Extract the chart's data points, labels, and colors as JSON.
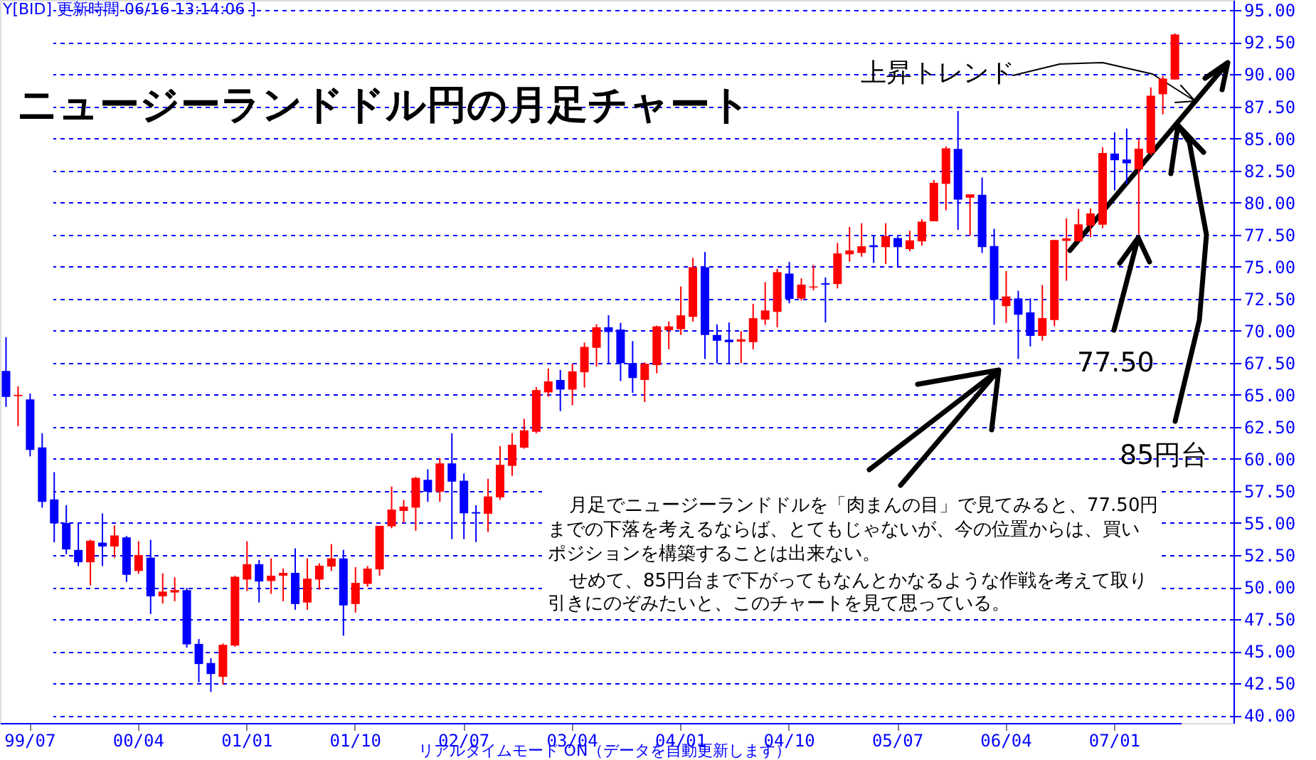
{
  "chart_data": {
    "type": "candlestick",
    "title": "ニュージーランドドル円の月足チャート",
    "categories": [
      null,
      null,
      "99/07",
      null,
      null,
      null,
      null,
      null,
      null,
      null,
      null,
      "00/04",
      null,
      null,
      null,
      null,
      null,
      null,
      null,
      null,
      "01/01",
      null,
      null,
      null,
      null,
      null,
      null,
      null,
      null,
      "01/10",
      null,
      null,
      null,
      null,
      null,
      null,
      null,
      null,
      "02/07",
      null,
      null,
      null,
      null,
      null,
      null,
      null,
      null,
      "03/04",
      null,
      null,
      null,
      null,
      null,
      null,
      null,
      null,
      "04/01",
      null,
      null,
      null,
      null,
      null,
      null,
      null,
      null,
      "04/10",
      null,
      null,
      null,
      null,
      null,
      null,
      null,
      null,
      "05/07",
      null,
      null,
      null,
      null,
      null,
      null,
      null,
      null,
      "06/04",
      null,
      null,
      null,
      null,
      null,
      null,
      null,
      null,
      "07/01",
      null,
      null,
      null,
      null,
      null
    ],
    "ohlc": [
      [
        66.86,
        69.5,
        64.06,
        64.84
      ],
      [
        64.9,
        65.67,
        62.56,
        65.0
      ],
      [
        64.65,
        65.1,
        60.2,
        60.7
      ],
      [
        60.9,
        62.0,
        56.2,
        56.65
      ],
      [
        56.84,
        58.97,
        53.5,
        54.97
      ],
      [
        55.0,
        56.39,
        52.57,
        52.94
      ],
      [
        52.9,
        55.0,
        51.64,
        51.94
      ],
      [
        51.94,
        53.7,
        50.14,
        53.62
      ],
      [
        53.47,
        55.75,
        51.64,
        53.17
      ],
      [
        53.17,
        54.82,
        52.3,
        54.03
      ],
      [
        53.88,
        53.99,
        50.4,
        50.96
      ],
      [
        51.26,
        53.58,
        51.04,
        52.5
      ],
      [
        52.3,
        53.69,
        47.9,
        49.28
      ],
      [
        49.28,
        51.07,
        48.72,
        49.65
      ],
      [
        49.58,
        50.77,
        48.9,
        49.77
      ],
      [
        49.77,
        49.95,
        45.28,
        45.54
      ],
      [
        45.57,
        45.95,
        42.58,
        44.0
      ],
      [
        44.08,
        44.45,
        41.83,
        43.22
      ],
      [
        43.0,
        45.6,
        42.4,
        45.5
      ],
      [
        45.43,
        50.89,
        45.35,
        50.81
      ],
      [
        50.59,
        53.58,
        49.69,
        51.79
      ],
      [
        51.79,
        52.12,
        48.8,
        50.44
      ],
      [
        50.48,
        52.24,
        49.47,
        50.89
      ],
      [
        50.89,
        51.45,
        48.9,
        51.11
      ],
      [
        51.11,
        53.02,
        48.23,
        48.68
      ],
      [
        48.8,
        52.24,
        48.23,
        50.66
      ],
      [
        50.59,
        51.86,
        49.8,
        51.67
      ],
      [
        51.6,
        53.36,
        51.26,
        52.24
      ],
      [
        52.24,
        52.91,
        46.21,
        48.57
      ],
      [
        48.68,
        51.56,
        48.01,
        50.33
      ],
      [
        50.25,
        51.64,
        50.03,
        51.45
      ],
      [
        51.38,
        54.78,
        50.89,
        54.78
      ],
      [
        54.74,
        57.85,
        54.59,
        56.05
      ],
      [
        55.94,
        56.8,
        55.0,
        56.28
      ],
      [
        56.2,
        58.6,
        54.4,
        58.52
      ],
      [
        58.37,
        59.19,
        56.65,
        57.44
      ],
      [
        57.44,
        60.06,
        56.66,
        59.65
      ],
      [
        59.65,
        62.0,
        53.74,
        58.23
      ],
      [
        58.3,
        58.86,
        53.74,
        55.76
      ],
      [
        55.85,
        56.39,
        53.51,
        55.74
      ],
      [
        55.72,
        58.45,
        54.3,
        57.07
      ],
      [
        57.0,
        61.0,
        56.8,
        59.54
      ],
      [
        59.46,
        62.0,
        58.68,
        61.1
      ],
      [
        60.88,
        63.13,
        60.8,
        62.23
      ],
      [
        62.12,
        65.6,
        62.0,
        65.37
      ],
      [
        65.19,
        67.06,
        64.85,
        66.05
      ],
      [
        66.16,
        66.94,
        63.73,
        65.41
      ],
      [
        65.41,
        67.43,
        64.18,
        66.83
      ],
      [
        66.76,
        69.08,
        65.56,
        68.74
      ],
      [
        68.67,
        70.5,
        67.21,
        70.27
      ],
      [
        70.27,
        71.21,
        67.47,
        69.9
      ],
      [
        70.09,
        70.61,
        66.08,
        67.47
      ],
      [
        67.47,
        69.19,
        65.15,
        66.31
      ],
      [
        66.16,
        67.54,
        64.44,
        67.43
      ],
      [
        67.32,
        70.4,
        66.68,
        70.34
      ],
      [
        70.04,
        70.72,
        68.55,
        70.34
      ],
      [
        70.12,
        73.45,
        69.67,
        71.2
      ],
      [
        71.09,
        75.69,
        70.72,
        74.95
      ],
      [
        74.95,
        76.14,
        67.8,
        69.67
      ],
      [
        69.67,
        70.49,
        67.46,
        69.22
      ],
      [
        69.3,
        70.64,
        67.46,
        69.11
      ],
      [
        69.15,
        69.97,
        67.46,
        69.33
      ],
      [
        69.11,
        72.1,
        68.55,
        70.98
      ],
      [
        70.87,
        73.79,
        70.46,
        71.58
      ],
      [
        71.47,
        74.83,
        70.27,
        74.57
      ],
      [
        74.46,
        75.36,
        72.14,
        72.48
      ],
      [
        72.51,
        74.09,
        72.36,
        73.6
      ],
      [
        73.37,
        75.13,
        73.15,
        73.45
      ],
      [
        73.71,
        74.16,
        70.64,
        73.6
      ],
      [
        73.64,
        76.85,
        73.3,
        76.03
      ],
      [
        75.96,
        78.09,
        75.4,
        76.26
      ],
      [
        76.07,
        78.39,
        75.77,
        76.59
      ],
      [
        76.67,
        77.46,
        75.29,
        76.52
      ],
      [
        76.52,
        78.39,
        75.21,
        77.38
      ],
      [
        77.23,
        77.35,
        75.03,
        76.52
      ],
      [
        76.37,
        77.8,
        76.2,
        77.05
      ],
      [
        76.97,
        78.69,
        76.64,
        78.51
      ],
      [
        78.54,
        81.76,
        78.54,
        81.54
      ],
      [
        81.46,
        84.38,
        79.4,
        84.23
      ],
      [
        84.19,
        87.15,
        77.87,
        80.23
      ],
      [
        80.38,
        80.64,
        77.42,
        80.64
      ],
      [
        80.6,
        81.95,
        76.07,
        76.52
      ],
      [
        76.6,
        77.95,
        70.46,
        72.41
      ],
      [
        71.92,
        74.65,
        70.61,
        72.67
      ],
      [
        72.52,
        73.12,
        67.8,
        71.25
      ],
      [
        71.43,
        72.52,
        68.78,
        69.6
      ],
      [
        69.6,
        73.57,
        69.22,
        70.99
      ],
      [
        70.84,
        77.08,
        70.35,
        77.08
      ],
      [
        77.01,
        78.77,
        73.9,
        77.2
      ],
      [
        76.97,
        79.5,
        76.97,
        78.3
      ],
      [
        78.2,
        79.54,
        77.3,
        79.15
      ],
      [
        78.27,
        84.32,
        78.0,
        83.86
      ],
      [
        83.82,
        85.47,
        80.95,
        83.3
      ],
      [
        83.36,
        85.77,
        81.45,
        83.06
      ],
      [
        82.6,
        84.97,
        77.5,
        84.2
      ],
      [
        83.86,
        88.98,
        83.7,
        88.33
      ],
      [
        88.45,
        89.86,
        86.88,
        89.67
      ],
      [
        89.6,
        93.19,
        89.6,
        93.11
      ]
    ],
    "colors": [
      "#0000ff",
      "#ff0000",
      "#0000ff",
      "#0000ff",
      "#0000ff",
      "#0000ff",
      "#0000ff",
      "#ff0000",
      "#0000ff",
      "#ff0000",
      "#0000ff",
      "#ff0000",
      "#0000ff",
      "#ff0000",
      "#ff0000",
      "#0000ff",
      "#0000ff",
      "#0000ff",
      "#ff0000",
      "#ff0000",
      "#ff0000",
      "#0000ff",
      "#ff0000",
      "#ff0000",
      "#0000ff",
      "#ff0000",
      "#ff0000",
      "#ff0000",
      "#0000ff",
      "#ff0000",
      "#ff0000",
      "#ff0000",
      "#ff0000",
      "#ff0000",
      "#ff0000",
      "#0000ff",
      "#ff0000",
      "#0000ff",
      "#0000ff",
      "#0000ff",
      "#ff0000",
      "#ff0000",
      "#ff0000",
      "#ff0000",
      "#ff0000",
      "#ff0000",
      "#0000ff",
      "#ff0000",
      "#ff0000",
      "#ff0000",
      "#0000ff",
      "#0000ff",
      "#0000ff",
      "#ff0000",
      "#ff0000",
      "#ff0000",
      "#ff0000",
      "#ff0000",
      "#0000ff",
      "#0000ff",
      "#0000ff",
      "#ff0000",
      "#ff0000",
      "#ff0000",
      "#ff0000",
      "#0000ff",
      "#ff0000",
      "#ff0000",
      "#0000ff",
      "#ff0000",
      "#ff0000",
      "#ff0000",
      "#0000ff",
      "#ff0000",
      "#0000ff",
      "#ff0000",
      "#ff0000",
      "#ff0000",
      "#ff0000",
      "#0000ff",
      "#ff0000",
      "#0000ff",
      "#0000ff",
      "#ff0000",
      "#0000ff",
      "#0000ff",
      "#ff0000",
      "#ff0000",
      "#ff0000",
      "#ff0000",
      "#ff0000",
      "#ff0000",
      "#0000ff",
      "#0000ff",
      "#ff0000",
      "#ff0000",
      "#ff0000",
      "#ff0000"
    ],
    "ylim": [
      39.4,
      95.8
    ],
    "yticks": [
      {
        "value": 40,
        "label": "40.00"
      },
      {
        "value": 42.5,
        "label": "42.50"
      },
      {
        "value": 45,
        "label": "45.00"
      },
      {
        "value": 47.5,
        "label": "47.50"
      },
      {
        "value": 50,
        "label": "50.00"
      },
      {
        "value": 52.5,
        "label": "52.50"
      },
      {
        "value": 55,
        "label": "55.00"
      },
      {
        "value": 57.5,
        "label": "57.50"
      },
      {
        "value": 60,
        "label": "60.00"
      },
      {
        "value": 62.5,
        "label": "62.50"
      },
      {
        "value": 65,
        "label": "65.00"
      },
      {
        "value": 67.5,
        "label": "67.50"
      },
      {
        "value": 70,
        "label": "70.00"
      },
      {
        "value": 72.5,
        "label": "72.50"
      },
      {
        "value": 75,
        "label": "75.00"
      },
      {
        "value": 77.5,
        "label": "77.50"
      },
      {
        "value": 80,
        "label": "80.00"
      },
      {
        "value": 82.5,
        "label": "82.50"
      },
      {
        "value": 85,
        "label": "85.00"
      },
      {
        "value": 87.5,
        "label": "87.50"
      },
      {
        "value": 90,
        "label": "90.00"
      },
      {
        "value": 92.5,
        "label": "92.50"
      },
      {
        "value": 95,
        "label": "95.00"
      }
    ],
    "grid": "y",
    "annotations": [
      "Y[BID]  更新時間 06/16 13:14:06 ]",
      "上昇トレンド",
      "77.50",
      "85円台",
      "月足でニュージーランドドルを「肉まんの目」で見てみると、77.50円",
      "までの下落を考えるならば、とてもじゃないが、今の位置からは、買い",
      "ポジションを構築することは出来ない。",
      "せめて、85円台まで下がってもなんとかなるような作戦を考えて取り",
      "引きにのぞみたいと、このチャートを見て思っている。",
      "リアルタイムモード ON（データを自動更新します）"
    ]
  }
}
